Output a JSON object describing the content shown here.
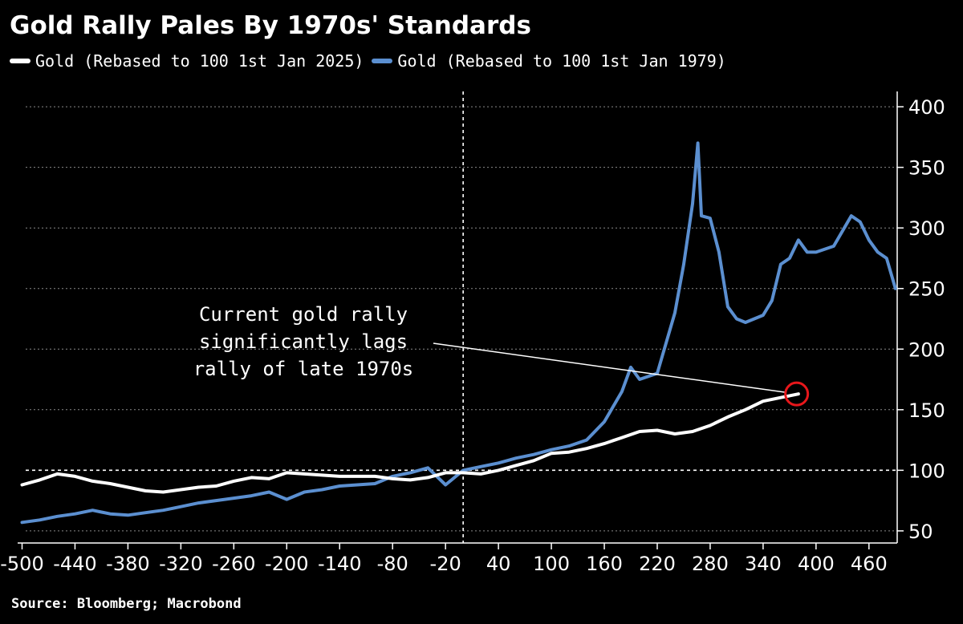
{
  "title": "Gold Rally Pales By 1970s' Standards",
  "source": "Source: Bloomberg; Macrobond",
  "colors": {
    "background": "#000000",
    "series_2025": "#ffffff",
    "series_1979": "#5b8fd0",
    "grid": "#8a8a8a",
    "highlight": "#e8171b"
  },
  "chart_data": {
    "type": "line",
    "xlabel": "",
    "ylabel": "",
    "xlim": [
      -505,
      492
    ],
    "ylim": [
      40,
      410
    ],
    "grid": true,
    "legend_position": "top-left",
    "xticks": [
      -500,
      -440,
      -380,
      -320,
      -260,
      -200,
      -140,
      -80,
      -20,
      40,
      100,
      160,
      220,
      280,
      340,
      400,
      460
    ],
    "xtick_labels": [
      "-500",
      "-440",
      "-380",
      "-320",
      "-260",
      "-200",
      "-140",
      "-80",
      "-20",
      "40",
      "100",
      "160",
      "220",
      "280",
      "340",
      "400",
      "460"
    ],
    "yticks": [
      50,
      100,
      150,
      200,
      250,
      300,
      350,
      400
    ],
    "ytick_labels": [
      "50",
      "100",
      "150",
      "200",
      "250",
      "300",
      "350",
      "400"
    ],
    "reference_lines": {
      "vertical_x": 0,
      "horizontal_y": 100
    },
    "series": [
      {
        "name": "Gold (Rebased to 100 1st Jan 2025)",
        "x": [
          -500,
          -480,
          -460,
          -440,
          -420,
          -400,
          -380,
          -360,
          -340,
          -320,
          -300,
          -280,
          -260,
          -240,
          -220,
          -200,
          -180,
          -160,
          -140,
          -120,
          -100,
          -80,
          -60,
          -40,
          -20,
          0,
          20,
          40,
          60,
          80,
          100,
          120,
          140,
          160,
          180,
          200,
          220,
          240,
          260,
          280,
          300,
          320,
          340,
          360,
          380
        ],
        "values": [
          88,
          92,
          97,
          95,
          91,
          89,
          86,
          83,
          82,
          84,
          86,
          87,
          91,
          94,
          93,
          98,
          97,
          96,
          95,
          95,
          95,
          93,
          92,
          94,
          98,
          98,
          97,
          100,
          104,
          108,
          114,
          115,
          118,
          122,
          127,
          132,
          133,
          130,
          132,
          137,
          144,
          150,
          157,
          160,
          163
        ]
      },
      {
        "name": "Gold (Rebased to 100 1st Jan 1979)",
        "x": [
          -500,
          -480,
          -460,
          -440,
          -420,
          -400,
          -380,
          -360,
          -340,
          -320,
          -300,
          -280,
          -260,
          -240,
          -220,
          -200,
          -180,
          -160,
          -140,
          -120,
          -100,
          -80,
          -60,
          -40,
          -20,
          0,
          20,
          40,
          60,
          80,
          100,
          120,
          140,
          160,
          180,
          190,
          200,
          220,
          240,
          250,
          260,
          266,
          270,
          280,
          290,
          300,
          310,
          320,
          340,
          350,
          360,
          370,
          380,
          390,
          400,
          420,
          440,
          450,
          460,
          470,
          480,
          490
        ],
        "values": [
          57,
          59,
          62,
          64,
          67,
          64,
          63,
          65,
          67,
          70,
          73,
          75,
          77,
          79,
          82,
          76,
          82,
          84,
          87,
          88,
          89,
          95,
          98,
          102,
          88,
          100,
          103,
          106,
          110,
          113,
          117,
          120,
          125,
          140,
          165,
          185,
          175,
          180,
          230,
          270,
          320,
          370,
          310,
          308,
          280,
          235,
          225,
          222,
          228,
          240,
          270,
          275,
          290,
          280,
          280,
          285,
          310,
          305,
          290,
          280,
          275,
          250
        ]
      }
    ],
    "annotation": {
      "text_lines": [
        "Current gold rally",
        "significantly lags",
        "rally of late 1970s"
      ],
      "point": {
        "x": 378,
        "y": 163
      }
    }
  }
}
